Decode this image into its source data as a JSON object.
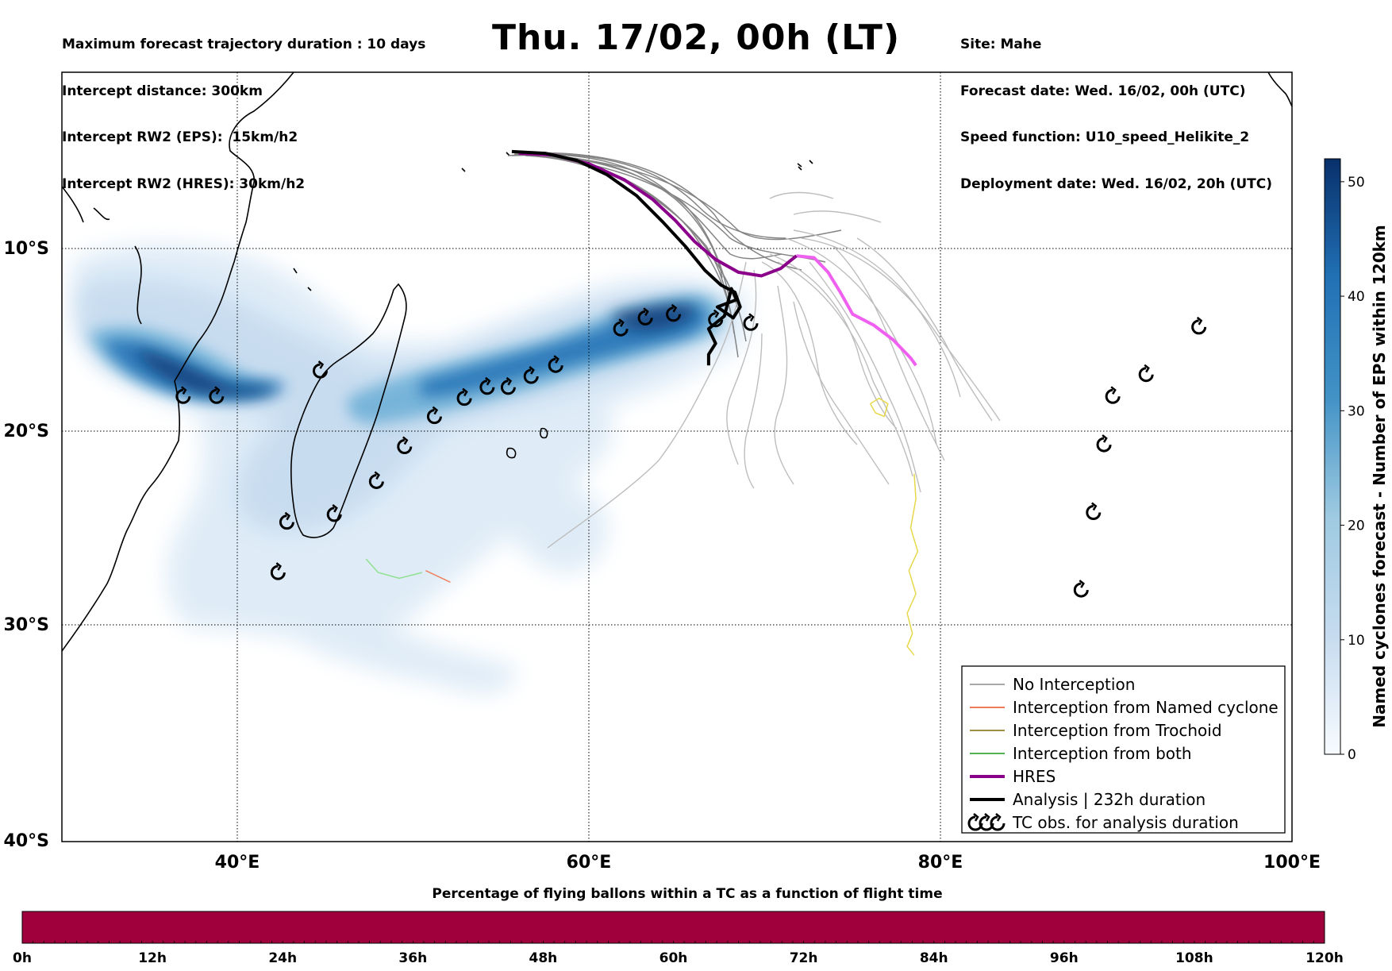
{
  "header": {
    "left": [
      "Maximum forecast trajectory duration : 10 days",
      "Intercept distance: 300km",
      "Intercept RW2 (EPS):  15km/h2",
      "Intercept RW2 (HRES): 30km/h2"
    ],
    "title": "Thu. 17/02, 00h (LT)",
    "right": [
      "Site: Mahe",
      "Forecast date: Wed. 16/02, 00h (UTC)",
      "Speed function: U10_speed_Helikite_2",
      "Deployment date: Wed. 16/02, 20h (UTC)"
    ]
  },
  "map": {
    "lon_ticks": [
      "40°E",
      "60°E",
      "80°E",
      "100°E"
    ],
    "lat_ticks": [
      "10°S",
      "20°S",
      "30°S",
      "40°S"
    ],
    "lon_range": [
      30,
      100
    ],
    "lat_range": [
      -40,
      0
    ],
    "grid": true
  },
  "legend": {
    "items": [
      {
        "label": "No Interception",
        "color": "#8c8c8c",
        "style": "thin-line"
      },
      {
        "label": "Interception from Named cyclone",
        "color": "#e8501e",
        "style": "thin-line"
      },
      {
        "label": "Interception from Trochoid",
        "color": "#7d6b00",
        "style": "thin-line"
      },
      {
        "label": "Interception from both",
        "color": "#1a9a1a",
        "style": "thin-line"
      },
      {
        "label": "HRES",
        "color": "#8b008b",
        "style": "thick-line"
      },
      {
        "label": "Analysis | 232h duration",
        "color": "#000000",
        "style": "thick-line"
      },
      {
        "label": "TC obs. for analysis duration",
        "color": "#000000",
        "style": "tc-symbols"
      }
    ]
  },
  "colorbar": {
    "label": "Named cyclones forecast - Number of EPS within 120km",
    "ticks": [
      "0",
      "10",
      "20",
      "30",
      "40",
      "50"
    ],
    "range": [
      0,
      52
    ],
    "colors": {
      "low": "#f7fbff",
      "high": "#08306b"
    }
  },
  "time_bar": {
    "title": "Percentage of flying ballons within a TC as a function of flight time",
    "ticks": [
      "0h",
      "12h",
      "24h",
      "36h",
      "48h",
      "60h",
      "72h",
      "84h",
      "96h",
      "108h",
      "120h"
    ],
    "color": "#a0003c"
  },
  "tc_obs": [
    {
      "lon": 36.9,
      "lat": -18.1
    },
    {
      "lon": 38.8,
      "lat": -18.1
    },
    {
      "lon": 44.7,
      "lat": -16.7
    },
    {
      "lon": 42.8,
      "lat": -24.7
    },
    {
      "lon": 45.5,
      "lat": -24.3
    },
    {
      "lon": 42.3,
      "lat": -27.3
    },
    {
      "lon": 47.9,
      "lat": -22.6
    },
    {
      "lon": 49.5,
      "lat": -20.8
    },
    {
      "lon": 51.2,
      "lat": -19.2
    },
    {
      "lon": 52.9,
      "lat": -18.2
    },
    {
      "lon": 54.2,
      "lat": -17.6
    },
    {
      "lon": 55.4,
      "lat": -17.6
    },
    {
      "lon": 56.7,
      "lat": -17.0
    },
    {
      "lon": 58.1,
      "lat": -16.4
    },
    {
      "lon": 61.8,
      "lat": -14.4
    },
    {
      "lon": 63.2,
      "lat": -13.8
    },
    {
      "lon": 64.8,
      "lat": -13.6
    },
    {
      "lon": 67.2,
      "lat": -13.9
    },
    {
      "lon": 69.2,
      "lat": -14.1
    },
    {
      "lon": 94.7,
      "lat": -14.3
    },
    {
      "lon": 91.7,
      "lat": -16.9
    },
    {
      "lon": 89.8,
      "lat": -18.1
    },
    {
      "lon": 89.3,
      "lat": -20.7
    },
    {
      "lon": 88.7,
      "lat": -24.2
    },
    {
      "lon": 88.0,
      "lat": -28.2
    }
  ],
  "tracks": {
    "analysis": [
      [
        55.6,
        -4.5
      ],
      [
        57.5,
        -4.6
      ],
      [
        59.3,
        -5.0
      ],
      [
        61.0,
        -5.8
      ],
      [
        62.7,
        -7.0
      ],
      [
        64.2,
        -8.5
      ],
      [
        65.5,
        -9.9
      ],
      [
        66.6,
        -11.2
      ],
      [
        67.5,
        -12.0
      ],
      [
        68.3,
        -12.4
      ],
      [
        68.6,
        -13.2
      ],
      [
        68.2,
        -13.8
      ],
      [
        67.3,
        -13.2
      ],
      [
        68.4,
        -12.8
      ],
      [
        68.1,
        -12.2
      ],
      [
        67.7,
        -13.7
      ],
      [
        66.8,
        -14.4
      ],
      [
        67.2,
        -15.2
      ],
      [
        66.8,
        -15.8
      ],
      [
        66.8,
        -16.4
      ]
    ],
    "hres": [
      [
        56.0,
        -4.6
      ],
      [
        58.0,
        -4.7
      ],
      [
        60.0,
        -5.2
      ],
      [
        62.0,
        -6.1
      ],
      [
        63.6,
        -7.2
      ],
      [
        64.9,
        -8.4
      ],
      [
        66.0,
        -9.6
      ],
      [
        67.2,
        -10.6
      ],
      [
        68.5,
        -11.3
      ],
      [
        69.8,
        -11.5
      ],
      [
        70.9,
        -11.1
      ],
      [
        71.8,
        -10.4
      ]
    ],
    "hres_ext": [
      [
        71.8,
        -10.4
      ],
      [
        72.8,
        -10.5
      ],
      [
        73.6,
        -11.3
      ],
      [
        74.3,
        -12.4
      ],
      [
        75.0,
        -13.6
      ],
      [
        76.2,
        -14.2
      ],
      [
        77.3,
        -15.0
      ],
      [
        78.3,
        -16.0
      ],
      [
        78.6,
        -16.4
      ]
    ],
    "yellow": [
      [
        78.5,
        -22.2
      ],
      [
        78.6,
        -23.5
      ],
      [
        78.3,
        -25.0
      ],
      [
        78.7,
        -26.2
      ],
      [
        78.2,
        -27.2
      ],
      [
        78.6,
        -28.4
      ],
      [
        78.1,
        -29.4
      ],
      [
        78.4,
        -30.4
      ],
      [
        78.1,
        -31.0
      ],
      [
        78.5,
        -31.4
      ]
    ],
    "yellow_loop": [
      [
        76.0,
        -18.5
      ],
      [
        76.5,
        -18.2
      ],
      [
        77.0,
        -18.5
      ],
      [
        76.8,
        -19.2
      ],
      [
        76.3,
        -19.0
      ],
      [
        76.0,
        -18.5
      ]
    ],
    "red": [
      [
        50.7,
        -27.2
      ],
      [
        52.1,
        -27.8
      ]
    ],
    "green": [
      [
        47.3,
        -26.6
      ],
      [
        48.0,
        -27.3
      ],
      [
        49.2,
        -27.6
      ],
      [
        50.5,
        -27.3
      ]
    ]
  }
}
